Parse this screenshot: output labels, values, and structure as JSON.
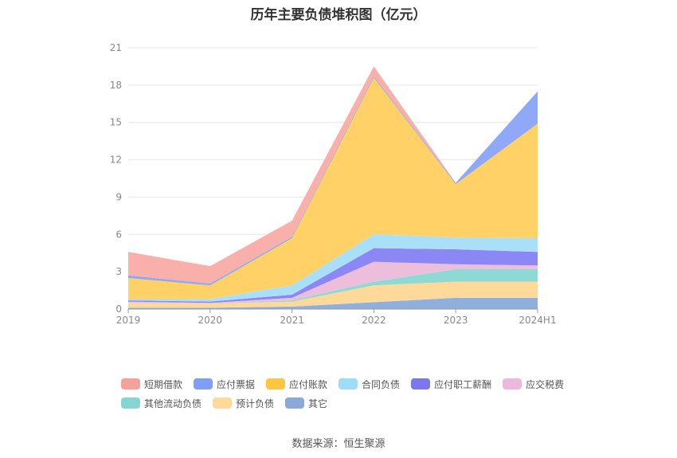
{
  "chart_data": {
    "type": "area",
    "stacked": true,
    "title": "历年主要负债堆积图（亿元）",
    "x": [
      "2019",
      "2020",
      "2021",
      "2022",
      "2023",
      "2024H1"
    ],
    "yticks": [
      0,
      3,
      6,
      9,
      12,
      15,
      18,
      21
    ],
    "ylim": [
      0,
      21
    ],
    "grid": true,
    "legend_position": "bottom",
    "series": [
      {
        "name": "其它",
        "color": "#8fb0dc",
        "values": [
          0.1,
          0.1,
          0.2,
          0.55,
          0.9,
          0.9
        ]
      },
      {
        "name": "预计负债",
        "color": "#ffd99a",
        "values": [
          0.4,
          0.35,
          0.4,
          1.35,
          1.3,
          1.3
        ]
      },
      {
        "name": "其他流动负债",
        "color": "#8fd9d4",
        "values": [
          0.0,
          0.0,
          0.1,
          0.3,
          1.0,
          1.0
        ]
      },
      {
        "name": "应交税费",
        "color": "#edbedc",
        "values": [
          0.1,
          0.05,
          0.2,
          1.6,
          0.4,
          0.3
        ]
      },
      {
        "name": "应付职工薪酬",
        "color": "#8b87f5",
        "values": [
          0.1,
          0.1,
          0.25,
          1.1,
          1.2,
          1.1
        ]
      },
      {
        "name": "合同负债",
        "color": "#a9e0f8",
        "values": [
          0.1,
          0.2,
          0.75,
          1.1,
          0.95,
          1.1
        ]
      },
      {
        "name": "应付账款",
        "color": "#ffd166",
        "values": [
          1.7,
          1.1,
          3.8,
          12.6,
          4.3,
          9.2
        ]
      },
      {
        "name": "应付票据",
        "color": "#8fa8f8",
        "values": [
          0.2,
          0.15,
          0.1,
          0.1,
          0.1,
          2.6
        ]
      },
      {
        "name": "短期借款",
        "color": "#f9b0aa",
        "values": [
          1.9,
          1.4,
          1.3,
          0.8,
          0.0,
          0.0
        ]
      }
    ],
    "legend_order": [
      "短期借款",
      "应付票据",
      "应付账款",
      "合同负债",
      "应付职工薪酬",
      "应交税费",
      "其他流动负债",
      "预计负债",
      "其它"
    ],
    "legend_colors": {
      "短期借款": "#f6a29a",
      "应付票据": "#7f9ef6",
      "应付账款": "#fcc542",
      "合同负债": "#9ddcfa",
      "应付职工薪酬": "#7b78ee",
      "应交税费": "#ecb8dc",
      "其他流动负债": "#85d6d2",
      "预计负债": "#ffd99a",
      "其它": "#8aa9d6"
    }
  },
  "source_text": "数据来源：恒生聚源"
}
